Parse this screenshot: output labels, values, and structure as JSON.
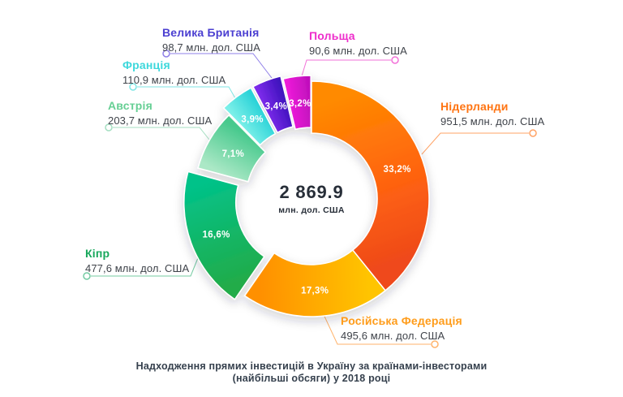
{
  "center": {
    "total": "2 869.9",
    "unit": "млн. дол. США"
  },
  "caption": {
    "line1": "Надходження прямих інвестицій в Україну за країнами-інвесторами",
    "line2": "(найбільші обсяги) у 2018 році"
  },
  "chart_data": {
    "type": "pie",
    "subtype": "donut-exploded",
    "title": "Надходження прямих інвестицій в Україну за країнами-інвесторами (найбільші обсяги) у 2018 році",
    "total_label": "2 869.9",
    "total_unit": "млн. дол. США",
    "total_value_num": 2869.9,
    "unit": "млн. дол. США",
    "legend_position": "callout-labels",
    "series": [
      {
        "name": "Нідерланди",
        "value_num": 951.5,
        "value_label": "951,5 млн. дол. США",
        "pct": 33.2,
        "pct_label": "33,2%",
        "color_start": "#FF8A00",
        "color_mid": "#FF6410",
        "color_end": "#EF4A1A",
        "label_color": "#FF7412",
        "line_color": "#FFA366"
      },
      {
        "name": "Російська Федерація",
        "value_num": 495.6,
        "value_label": "495,6 млн. дол. США",
        "pct": 17.3,
        "pct_label": "17,3%",
        "color_start": "#FFC400",
        "color_end": "#FF9000",
        "label_color": "#FF9C1A",
        "line_color": "#FFB36B"
      },
      {
        "name": "Кіпр",
        "value_num": 477.6,
        "value_label": "477,6 млн. дол. США",
        "pct": 16.6,
        "pct_label": "16,6%",
        "color_start": "#21AC4A",
        "color_end": "#02C289",
        "label_color": "#17A75B",
        "line_color": "#74CBA2"
      },
      {
        "name": "Австрія",
        "value_num": 203.7,
        "value_label": "203,7 млн. дол. США",
        "pct": 7.1,
        "pct_label": "7,1%",
        "color_start": "#ABE8C6",
        "color_end": "#47C98D",
        "label_color": "#66CF94",
        "line_color": "#A5DFC2"
      },
      {
        "name": "Франція",
        "value_num": 110.9,
        "value_label": "110,9 млн. дол. США",
        "pct": 3.9,
        "pct_label": "3,9%",
        "color_start": "#7AEFE8",
        "color_end": "#2BD3D8",
        "label_color": "#3ED8DC",
        "line_color": "#7FE6E4"
      },
      {
        "name": "Велика Британія",
        "value_num": 98.7,
        "value_label": "98,7 млн. дол. США",
        "pct": 3.4,
        "pct_label": "3,4%",
        "color_start": "#7B2BEA",
        "color_end": "#3F12BD",
        "label_color": "#4B3FD1",
        "line_color": "#8F7FE8"
      },
      {
        "name": "Польща",
        "value_num": 90.6,
        "value_label": "90,6 млн. дол. США",
        "pct": 3.2,
        "pct_label": "3,2%",
        "color_start": "#ED1BD9",
        "color_end": "#C010BC",
        "label_color": "#EE2CCB",
        "line_color": "#F271D8"
      }
    ]
  }
}
